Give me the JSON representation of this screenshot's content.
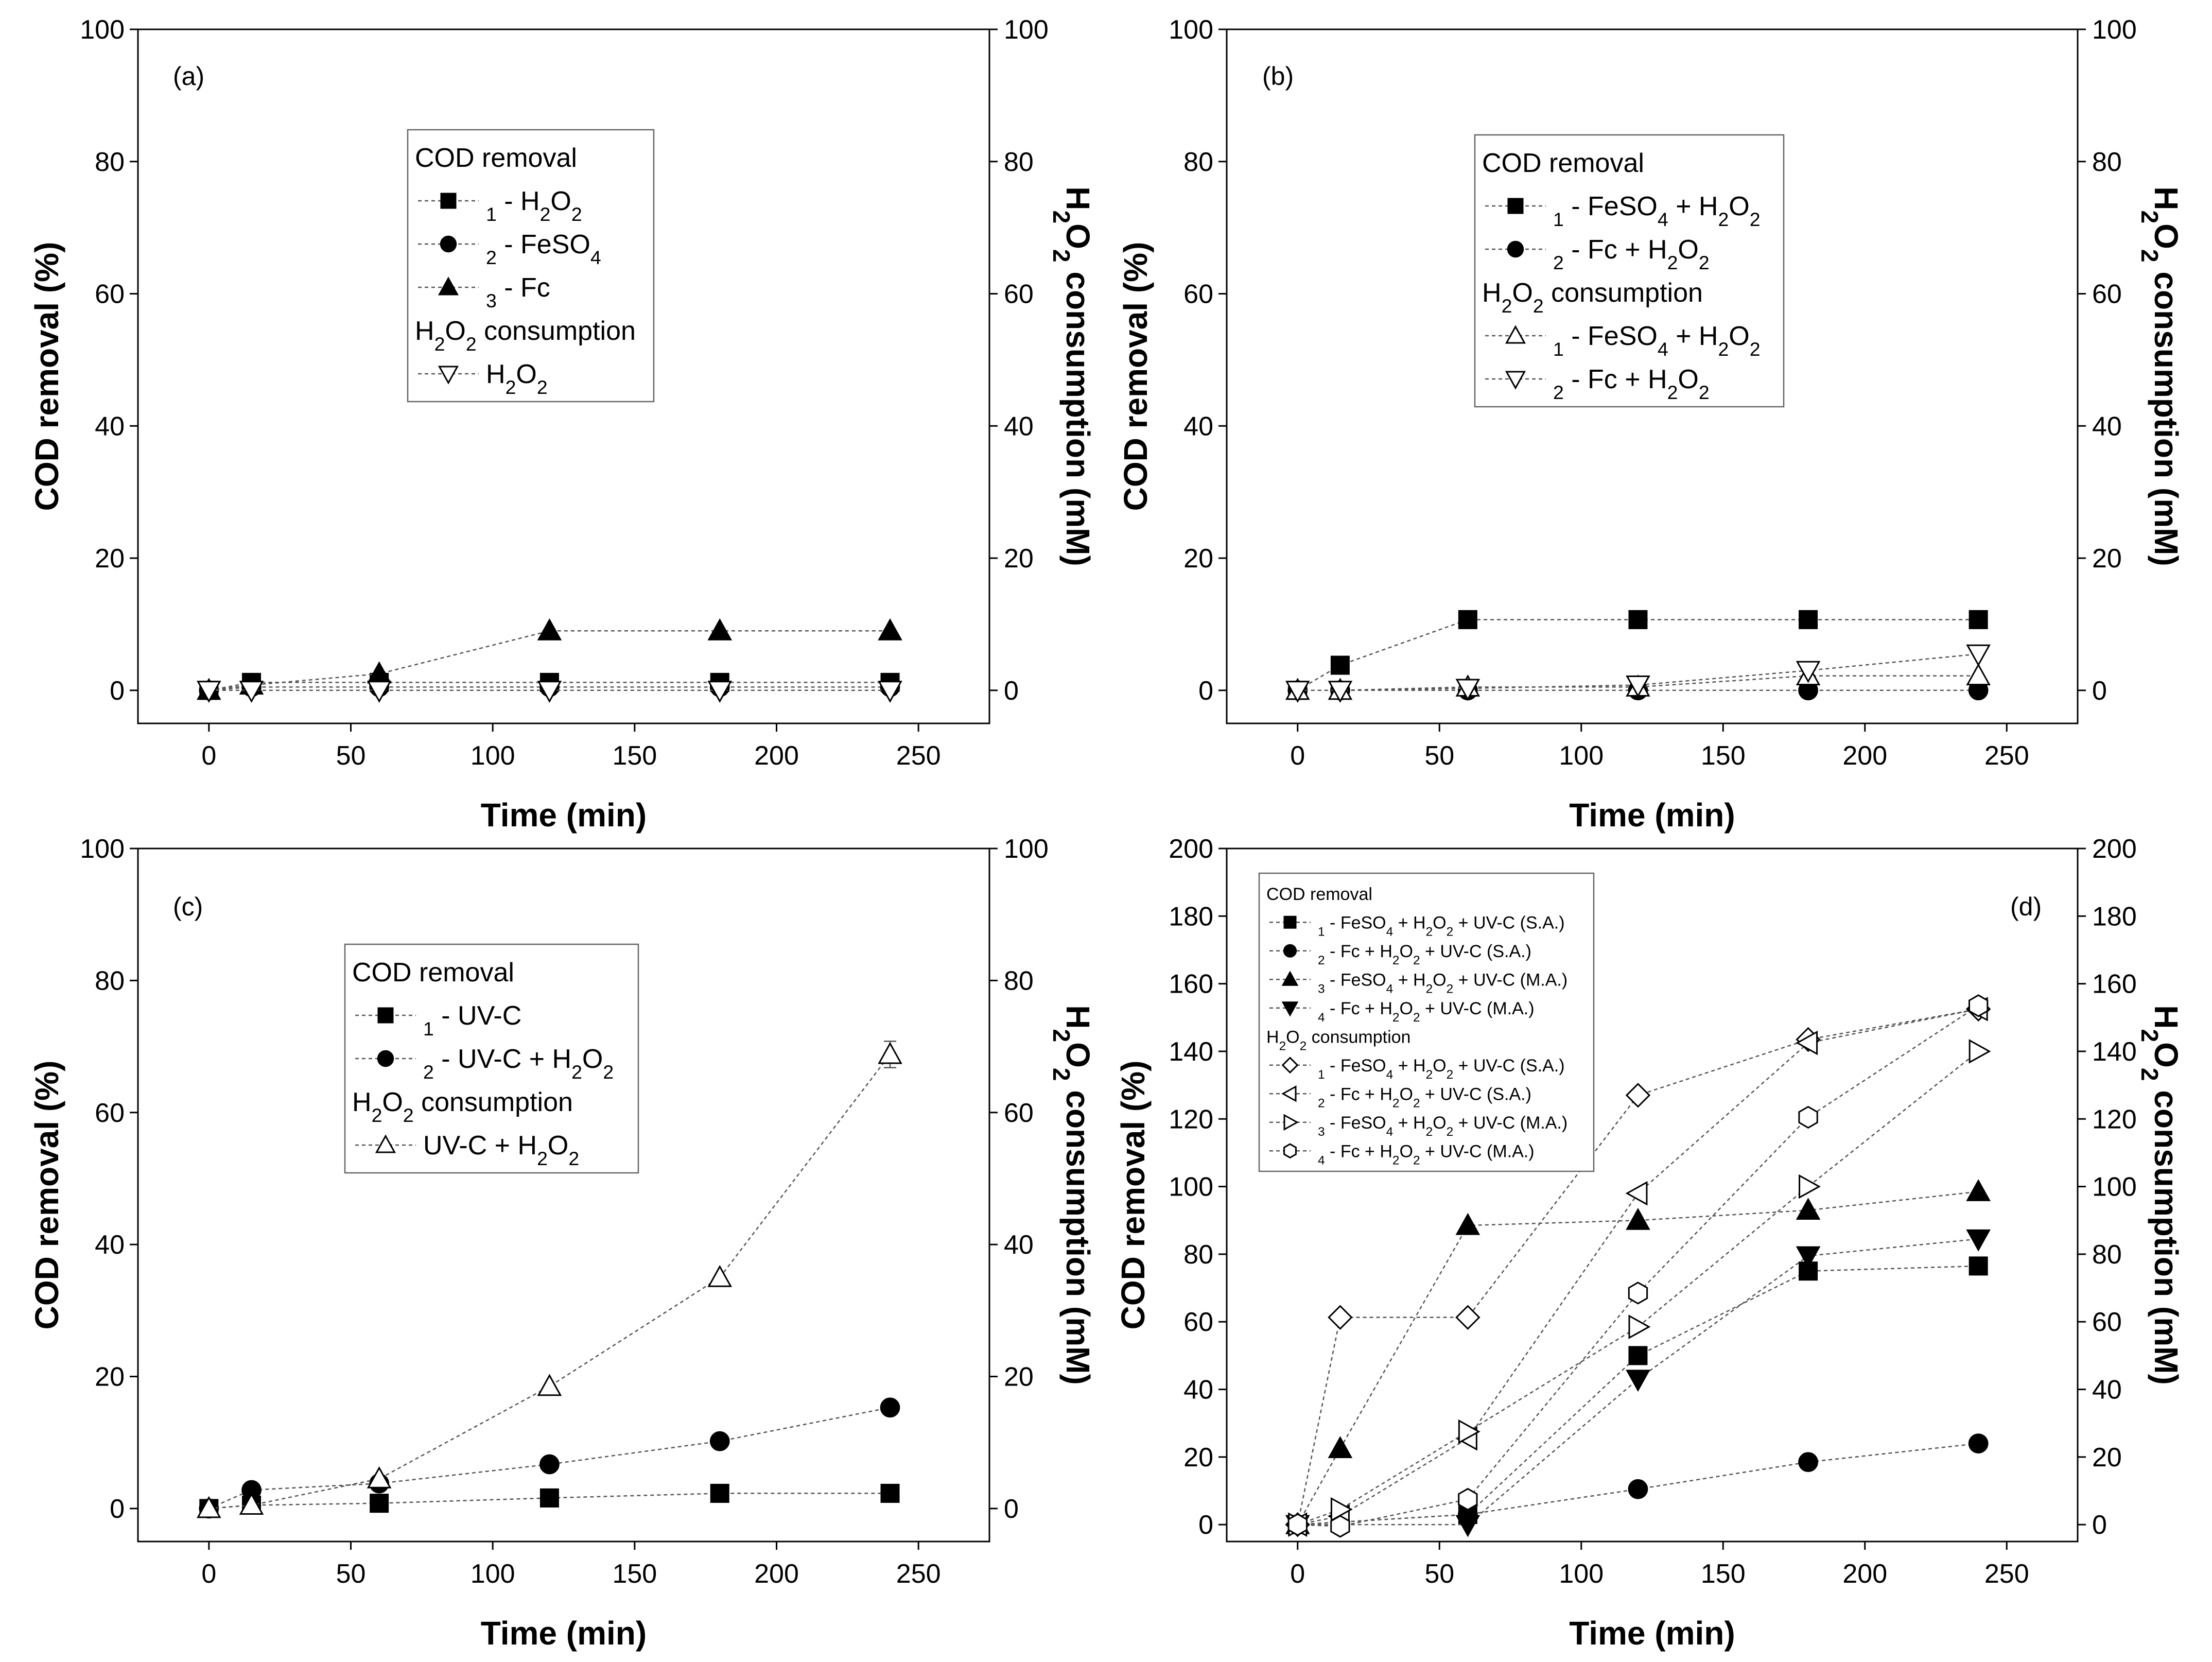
{
  "chart_data": [
    {
      "type": "line",
      "panel": "(a)",
      "xlabel": "Time (min)",
      "ylabel": "COD removal (%)",
      "y2label": "H2O2 consumption (mM)",
      "xlim": [
        -25,
        275
      ],
      "ylim": [
        -5,
        100
      ],
      "y2lim": [
        -5,
        100
      ],
      "xticks": [
        0,
        50,
        100,
        150,
        200,
        250
      ],
      "yticks": [
        0,
        20,
        40,
        60,
        80,
        100
      ],
      "y2ticks": [
        0,
        20,
        40,
        60,
        80,
        100
      ],
      "legend": [
        {
          "kind": "header",
          "text": "COD removal"
        },
        {
          "kind": "entry",
          "marker": "square",
          "prefix": "1 - ",
          "label": "H2O2"
        },
        {
          "kind": "entry",
          "marker": "circle",
          "prefix": "2 - ",
          "label": "FeSO4"
        },
        {
          "kind": "entry",
          "marker": "triangle",
          "prefix": "3 - ",
          "label": "Fc"
        },
        {
          "kind": "header",
          "text": "H2O2 consumption"
        },
        {
          "kind": "entry",
          "marker": "tri-down-open",
          "prefix": "",
          "label": "H2O2"
        }
      ],
      "series": [
        {
          "name": "1 - H2O2",
          "axis": "left",
          "marker": "square",
          "x": [
            0,
            15,
            60,
            120,
            180,
            240
          ],
          "y": [
            0,
            1.2,
            1.2,
            1.2,
            1.2,
            1.2
          ]
        },
        {
          "name": "2 - FeSO4",
          "axis": "left",
          "marker": "circle",
          "x": [
            0,
            15,
            60,
            120,
            180,
            240
          ],
          "y": [
            0,
            0.5,
            0.5,
            0.5,
            0.5,
            0.5
          ]
        },
        {
          "name": "3 - Fc",
          "axis": "left",
          "marker": "triangle",
          "x": [
            0,
            15,
            60,
            120,
            180,
            240
          ],
          "y": [
            0,
            0.8,
            2.5,
            9,
            9,
            9
          ]
        },
        {
          "name": "H2O2 consumption",
          "axis": "right",
          "marker": "tri-down-open",
          "x": [
            0,
            15,
            60,
            120,
            180,
            240
          ],
          "y": [
            0,
            0,
            0,
            0,
            0,
            0
          ]
        }
      ]
    },
    {
      "type": "line",
      "panel": "(b)",
      "xlabel": "Time (min)",
      "ylabel": "COD removal (%)",
      "y2label": "H2O2 consumption (mM)",
      "xlim": [
        -25,
        275
      ],
      "ylim": [
        -5,
        100
      ],
      "y2lim": [
        -5,
        100
      ],
      "xticks": [
        0,
        50,
        100,
        150,
        200,
        250
      ],
      "yticks": [
        0,
        20,
        40,
        60,
        80,
        100
      ],
      "y2ticks": [
        0,
        20,
        40,
        60,
        80,
        100
      ],
      "legend": [
        {
          "kind": "header",
          "text": "COD removal"
        },
        {
          "kind": "entry",
          "marker": "square",
          "prefix": "1 - ",
          "label": "FeSO4 + H2O2"
        },
        {
          "kind": "entry",
          "marker": "circle",
          "prefix": "2 - ",
          "label": "Fc + H2O2"
        },
        {
          "kind": "header",
          "text": "H2O2 consumption"
        },
        {
          "kind": "entry",
          "marker": "triangle-open",
          "prefix": "1 - ",
          "label": "FeSO4 + H2O2"
        },
        {
          "kind": "entry",
          "marker": "tri-down-open",
          "prefix": "2 - ",
          "label": "Fc + H2O2"
        }
      ],
      "series": [
        {
          "name": "1 - FeSO4 + H2O2",
          "axis": "left",
          "marker": "square",
          "x": [
            0,
            15,
            60,
            120,
            180,
            240
          ],
          "y": [
            0,
            3.8,
            10.7,
            10.7,
            10.7,
            10.7
          ]
        },
        {
          "name": "2 - Fc + H2O2",
          "axis": "left",
          "marker": "circle",
          "x": [
            0,
            15,
            60,
            120,
            180,
            240
          ],
          "y": [
            0,
            0,
            0,
            0,
            0,
            0
          ]
        },
        {
          "name": "1 - FeSO4 + H2O2 (H2O2)",
          "axis": "right",
          "marker": "triangle-open",
          "x": [
            0,
            15,
            60,
            120,
            180,
            240
          ],
          "y": [
            0,
            0,
            0.5,
            0.5,
            2.2,
            2.2
          ]
        },
        {
          "name": "2 - Fc + H2O2 (H2O2)",
          "axis": "right",
          "marker": "tri-down-open",
          "x": [
            0,
            15,
            60,
            120,
            180,
            240
          ],
          "y": [
            0,
            0,
            0.3,
            0.8,
            3,
            5.5
          ]
        }
      ]
    },
    {
      "type": "line",
      "panel": "(c)",
      "xlabel": "Time (min)",
      "ylabel": "COD removal (%)",
      "y2label": "H2O2 consumption (mM)",
      "xlim": [
        -25,
        275
      ],
      "ylim": [
        -5,
        100
      ],
      "y2lim": [
        -5,
        100
      ],
      "xticks": [
        0,
        50,
        100,
        150,
        200,
        250
      ],
      "yticks": [
        0,
        20,
        40,
        60,
        80,
        100
      ],
      "y2ticks": [
        0,
        20,
        40,
        60,
        80,
        100
      ],
      "legend": [
        {
          "kind": "header",
          "text": "COD removal"
        },
        {
          "kind": "entry",
          "marker": "square",
          "prefix": "1 - ",
          "label": "UV-C"
        },
        {
          "kind": "entry",
          "marker": "circle",
          "prefix": "2 - ",
          "label": "UV-C + H2O2"
        },
        {
          "kind": "header",
          "text": "H2O2 consumption"
        },
        {
          "kind": "entry",
          "marker": "triangle-open",
          "prefix": "",
          "label": "UV-C + H2O2"
        }
      ],
      "series": [
        {
          "name": "1 - UV-C",
          "axis": "left",
          "marker": "square",
          "x": [
            0,
            15,
            60,
            120,
            180,
            240
          ],
          "y": [
            0,
            0.5,
            0.8,
            1.6,
            2.3,
            2.3
          ]
        },
        {
          "name": "2 - UV-C + H2O2",
          "axis": "left",
          "marker": "circle",
          "x": [
            0,
            15,
            60,
            120,
            180,
            240
          ],
          "y": [
            0,
            2.8,
            3.8,
            6.7,
            10.2,
            15.3
          ]
        },
        {
          "name": "UV-C + H2O2 (H2O2)",
          "axis": "right",
          "marker": "triangle-open",
          "x": [
            0,
            15,
            60,
            120,
            180,
            240
          ],
          "y": [
            0,
            0.5,
            4.5,
            18.5,
            35,
            68.8
          ],
          "err": [
            0,
            0,
            0,
            0,
            0,
            2
          ]
        }
      ]
    },
    {
      "type": "line",
      "panel": "(d)",
      "xlabel": "Time (min)",
      "ylabel": "COD removal (%)",
      "y2label": "H2O2 consumption (mM)",
      "xlim": [
        -25,
        275
      ],
      "ylim": [
        -5,
        200
      ],
      "y2lim": [
        -5,
        200
      ],
      "xticks": [
        0,
        50,
        100,
        150,
        200,
        250
      ],
      "yticks": [
        0,
        20,
        40,
        60,
        80,
        100,
        120,
        140,
        160,
        180,
        200
      ],
      "y2ticks": [
        0,
        20,
        40,
        60,
        80,
        100,
        120,
        140,
        160,
        180,
        200
      ],
      "legend": [
        {
          "kind": "header",
          "text": "COD removal"
        },
        {
          "kind": "entry",
          "marker": "square",
          "prefix": "1 - ",
          "label": "FeSO4 + H2O2 + UV-C (S.A.)"
        },
        {
          "kind": "entry",
          "marker": "circle",
          "prefix": "2 - ",
          "label": "Fc + H2O2 + UV-C (S.A.)"
        },
        {
          "kind": "entry",
          "marker": "triangle",
          "prefix": "3 - ",
          "label": "FeSO4 + H2O2 + UV-C (M.A.)"
        },
        {
          "kind": "entry",
          "marker": "tri-down",
          "prefix": "4 - ",
          "label": "Fc + H2O2 + UV-C (M.A.)"
        },
        {
          "kind": "header",
          "text": "H2O2 consumption"
        },
        {
          "kind": "entry",
          "marker": "diamond-open",
          "prefix": "1 - ",
          "label": "FeSO4 + H2O2 + UV-C (S.A.)"
        },
        {
          "kind": "entry",
          "marker": "tri-left-open",
          "prefix": "2 - ",
          "label": "Fc + H2O2 + UV-C (S.A.)"
        },
        {
          "kind": "entry",
          "marker": "tri-right-open",
          "prefix": "3 - ",
          "label": "FeSO4 + H2O2 + UV-C (M.A.)"
        },
        {
          "kind": "entry",
          "marker": "hexagon-open",
          "prefix": "4 - ",
          "label": "Fc + H2O2 + UV-C (M.A.)"
        }
      ],
      "series": [
        {
          "name": "1 - FeSO4 + H2O2 + UV-C (S.A.)",
          "axis": "left",
          "marker": "square",
          "x": [
            0,
            60,
            120,
            180,
            240
          ],
          "y": [
            0,
            3,
            50,
            75,
            76.5
          ]
        },
        {
          "name": "2 - Fc + H2O2 + UV-C (S.A.)",
          "axis": "left",
          "marker": "circle",
          "x": [
            0,
            60,
            120,
            180,
            240
          ],
          "y": [
            0,
            3,
            10.5,
            18.5,
            24
          ]
        },
        {
          "name": "3 - FeSO4 + H2O2 + UV-C (M.A.)",
          "axis": "left",
          "marker": "triangle",
          "x": [
            0,
            15,
            60,
            120,
            180,
            240
          ],
          "y": [
            0,
            22.5,
            88.5,
            90,
            93,
            98.5
          ]
        },
        {
          "name": "4 - Fc + H2O2 + UV-C (M.A.)",
          "axis": "left",
          "marker": "tri-down",
          "x": [
            0,
            60,
            120,
            180,
            240
          ],
          "y": [
            0,
            0,
            43,
            79.5,
            84.5
          ]
        },
        {
          "name": "1 - FeSO4 + H2O2 + UV-C (S.A.) (H2O2)",
          "axis": "right",
          "marker": "diamond-open",
          "x": [
            0,
            15,
            60,
            120,
            180,
            240
          ],
          "y": [
            0,
            61.3,
            61.3,
            127,
            143.5,
            152.5
          ]
        },
        {
          "name": "2 - Fc + H2O2 + UV-C (S.A.) (H2O2)",
          "axis": "right",
          "marker": "tri-left-open",
          "x": [
            0,
            15,
            60,
            120,
            180,
            240
          ],
          "y": [
            0,
            2.5,
            25.5,
            98,
            142.5,
            152.5
          ]
        },
        {
          "name": "3 - FeSO4 + H2O2 + UV-C (M.A.) (H2O2)",
          "axis": "right",
          "marker": "tri-right-open",
          "x": [
            0,
            15,
            60,
            120,
            180,
            240
          ],
          "y": [
            0,
            4.5,
            27.5,
            58.5,
            100,
            140
          ]
        },
        {
          "name": "4 - Fc + H2O2 + UV-C (M.A.) (H2O2)",
          "axis": "right",
          "marker": "hexagon-open",
          "x": [
            0,
            15,
            60,
            120,
            180,
            240
          ],
          "y": [
            0,
            -0.5,
            7.5,
            68.5,
            120.5,
            153.5
          ]
        }
      ]
    }
  ]
}
